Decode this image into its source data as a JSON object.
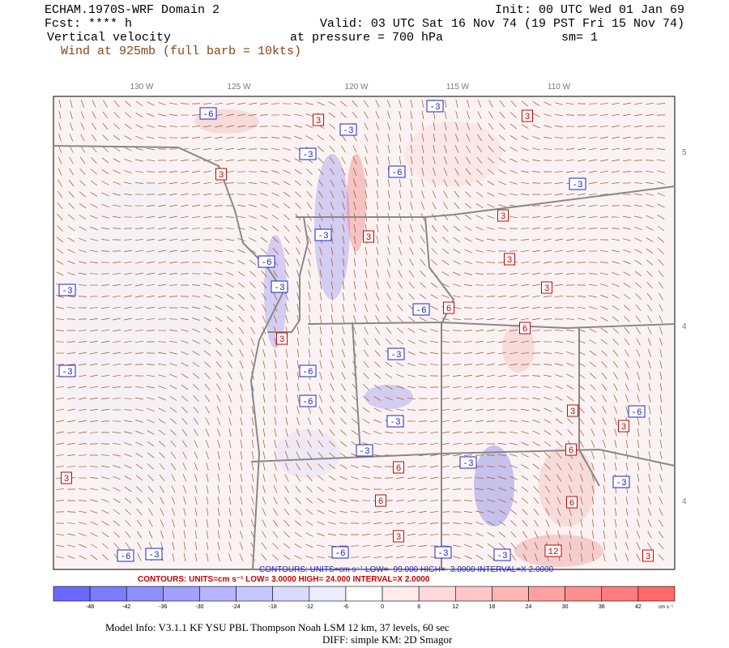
{
  "header": {
    "title": "ECHAM.1970S-WRF Domain 2",
    "init": "Init: 00 UTC Wed 01 Jan 69",
    "forecast": "Fcst: **** h",
    "valid": "Valid: 03 UTC Sat 16 Nov 74 (19 PST Fri 15 Nov 74)",
    "field": "Vertical velocity",
    "level": "at pressure =  700 hPa",
    "smoothing": "sm= 1",
    "wind": "Wind at 925mb (full barb = 10kts)"
  },
  "map": {
    "longitude_labels": [
      "130 W",
      "125 W",
      "120 W",
      "115 W",
      "110 W"
    ],
    "latitude_labels": [
      "5",
      "4",
      "4"
    ],
    "contour_labels": [
      "-6",
      "3",
      "-3",
      "-3",
      "3",
      "-3",
      "3",
      "-6",
      "-3",
      "3",
      "-3",
      "3",
      "-6",
      "3",
      "-3",
      "-3",
      "3",
      "6",
      "-6",
      "3",
      "-3",
      "-6",
      "-3",
      "6",
      "-6",
      "3",
      "-3",
      "-6",
      "3",
      "-3",
      "6",
      "-3",
      "6",
      "-3",
      "3",
      "6",
      "6",
      "3",
      "-3",
      "12",
      "-3",
      "-6",
      "-6",
      "-3",
      "3"
    ]
  },
  "contour_info": {
    "negative": "CONTOURS:  UNITS=cm s⁻¹  LOW= -99.000   HIGH= -3.0000    INTERVAL=X  2.0000",
    "positive": "CONTOURS:  UNITS=cm s⁻¹  LOW=  3.0000    HIGH=  24.000     INTERVAL=X  2.0000"
  },
  "colorbar": {
    "tick_labels": [
      "-48",
      "-42",
      "-36",
      "-30",
      "-24",
      "-18",
      "-12",
      "-6",
      "0",
      "6",
      "12",
      "18",
      "24",
      "30",
      "36",
      "42"
    ],
    "unit": "cm s⁻¹"
  },
  "footer": {
    "model_info": "Model Info: V3.1.1    KF      YSU PBL   Thompson     Noah LSM  12 km,    37 levels,    60 sec",
    "diff": "DIFF: simple KM: 2D Smagor"
  }
}
